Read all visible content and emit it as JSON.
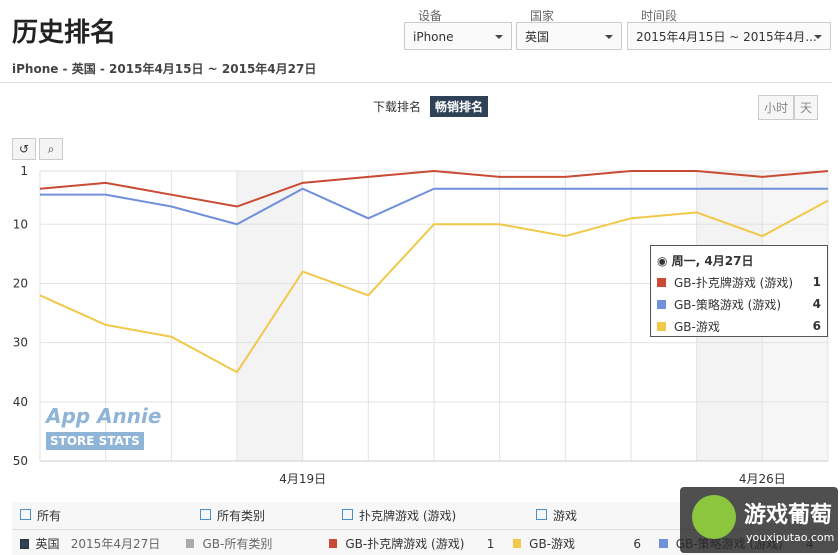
{
  "header": {
    "title": "历史排名",
    "subtitle": "iPhone - 英国 - 2015年4月15日 ~ 2015年4月27日"
  },
  "filters": [
    {
      "label": "设备",
      "value": "iPhone"
    },
    {
      "label": "国家",
      "value": "英国"
    },
    {
      "label": "时间段",
      "value": "2015年4月15日 ~ 2015年4月..."
    }
  ],
  "tabs": [
    "下载排名",
    "畅销排名"
  ],
  "active_tab": 1,
  "granularity": [
    "小时",
    "天"
  ],
  "watermark": {
    "brand": "App Annie",
    "sub": "STORE STATS",
    "logo": "游戏葡萄",
    "site": "youxiputao.com"
  },
  "chart_data": {
    "type": "line",
    "categories": [
      null,
      null,
      null,
      null,
      "4月19日",
      null,
      null,
      null,
      null,
      null,
      null,
      "4月26日",
      null
    ],
    "series": [
      {
        "name": "GB-扑克牌游戏 (游戏)",
        "color": "#c94a35",
        "values": [
          4,
          3,
          5,
          7,
          3,
          2,
          1,
          2,
          2,
          1,
          1,
          2,
          1
        ]
      },
      {
        "name": "GB-策略游戏 (游戏)",
        "color": "#7090dc",
        "values": [
          5,
          5,
          7,
          10,
          4,
          9,
          4,
          4,
          4,
          4,
          4,
          4,
          4
        ]
      },
      {
        "name": "GB-游戏",
        "color": "#f0c84a",
        "values": [
          22,
          27,
          29,
          35,
          18,
          22,
          10,
          10,
          12,
          9,
          8,
          12,
          6
        ]
      }
    ],
    "ylim": [
      1,
      50
    ],
    "y_reversed": true,
    "yticks": [
      1,
      10,
      20,
      30,
      40,
      50
    ],
    "grid": true,
    "tooltip_title": "周一, 4月27日"
  },
  "legend_table": {
    "header": [
      "所有",
      "所有类别",
      "扑克牌游戏 (游戏)",
      "游戏"
    ],
    "row": {
      "country": "英国",
      "date": "2015年4月27日",
      "all": "GB-所有类别"
    }
  }
}
